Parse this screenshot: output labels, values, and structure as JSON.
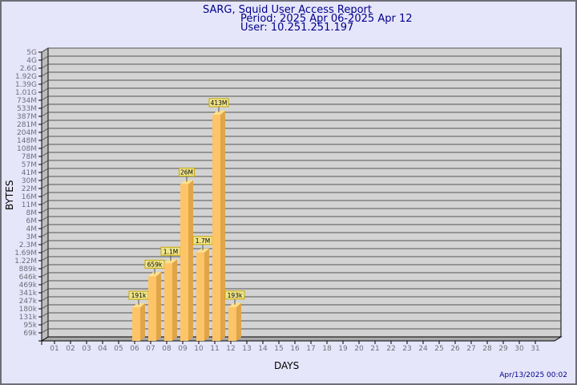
{
  "header": {
    "title": "SARG, Squid User Access Report",
    "period": "Period: 2025 Apr 06-2025 Apr 12",
    "user": "User: 10.251.251.197"
  },
  "footer": {
    "generated": "Apr/13/2025 00:02"
  },
  "colors": {
    "background": "#e6e6fa",
    "title": "#00008b",
    "wall": "#d3d3d3",
    "bar": "#fdc468",
    "bar_side": "#e0a548",
    "label_box": "#f0e68c"
  },
  "chart_data": {
    "type": "bar",
    "title": "SARG, Squid User Access Report",
    "xlabel": "DAYS",
    "ylabel": "BYTES",
    "y_scale": "log-like (irregular tick spacing)",
    "grid": true,
    "style": "3d",
    "y_ticks": [
      "69k",
      "95k",
      "131k",
      "180k",
      "247k",
      "341k",
      "469k",
      "646k",
      "889k",
      "1.22M",
      "1.69M",
      "2.3M",
      "3M",
      "4M",
      "6M",
      "8M",
      "11M",
      "16M",
      "22M",
      "30M",
      "41M",
      "57M",
      "78M",
      "108M",
      "148M",
      "204M",
      "281M",
      "387M",
      "533M",
      "734M",
      "1.01G",
      "1.39G",
      "1.92G",
      "2.6G",
      "4G",
      "5G"
    ],
    "categories": [
      "01",
      "02",
      "03",
      "04",
      "05",
      "06",
      "07",
      "08",
      "09",
      "10",
      "11",
      "12",
      "13",
      "14",
      "15",
      "16",
      "17",
      "18",
      "19",
      "20",
      "21",
      "22",
      "23",
      "24",
      "25",
      "26",
      "27",
      "28",
      "29",
      "30",
      "31"
    ],
    "bars": [
      {
        "day": "06",
        "value": 191000,
        "label": "191k"
      },
      {
        "day": "07",
        "value": 659000,
        "label": "659k"
      },
      {
        "day": "08",
        "value": 1100000,
        "label": "1.1M"
      },
      {
        "day": "09",
        "value": 26000000,
        "label": "26M"
      },
      {
        "day": "10",
        "value": 1700000,
        "label": "1.7M"
      },
      {
        "day": "11",
        "value": 413000000,
        "label": "413M"
      },
      {
        "day": "12",
        "value": 193000,
        "label": "193k"
      }
    ]
  }
}
